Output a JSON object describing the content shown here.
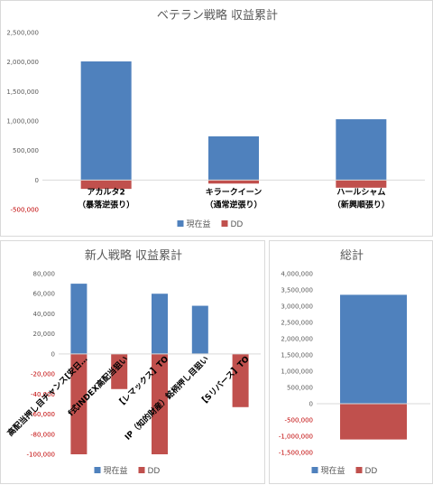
{
  "colors": {
    "現在益": "#4f81bd",
    "DD": "#c0504d",
    "negative_tick": "#c00000"
  },
  "chart_data": [
    {
      "type": "bar",
      "stacked": true,
      "title": "ベテラン戦略 収益累計",
      "categories": [
        "アカルタ2\n（暴落逆張り）",
        "キラークイーン\n（通常逆張り）",
        "ハールシャム\n（新興順張り）"
      ],
      "series": [
        {
          "name": "現在益",
          "values": [
            2010000,
            740000,
            1030000
          ]
        },
        {
          "name": "DD",
          "values": [
            -150000,
            -60000,
            -130000
          ]
        }
      ],
      "ylim": [
        -500000,
        2500000
      ],
      "yticks": [
        -500000,
        0,
        500000,
        1000000,
        1500000,
        2000000,
        2500000
      ],
      "ytick_labels": [
        "-500,000",
        "0",
        "500,000",
        "1,000,000",
        "1,500,000",
        "2,000,000",
        "2,500,000"
      ],
      "legend": "bottom",
      "grid": false
    },
    {
      "type": "bar",
      "stacked": true,
      "title": "新人戦略 収益累計",
      "categories": [
        "高配当押し目チャンス[安日…",
        "f式INDEX高配当狙い",
        "【レマックス】TO",
        "IP（知的財産）銘柄押し目狙い",
        "【Sリバース】TO"
      ],
      "series": [
        {
          "name": "現在益",
          "values": [
            70000,
            0,
            60000,
            48000,
            0
          ]
        },
        {
          "name": "DD",
          "values": [
            -100000,
            -35000,
            -100000,
            0,
            -53000
          ]
        }
      ],
      "ylim": [
        -100000,
        80000
      ],
      "yticks": [
        -100000,
        -80000,
        -60000,
        -40000,
        -20000,
        0,
        20000,
        40000,
        60000,
        80000
      ],
      "ytick_labels": [
        "-100,000",
        "-80,000",
        "-60,000",
        "-40,000",
        "-20,000",
        "0",
        "20,000",
        "40,000",
        "60,000",
        "80,000"
      ],
      "legend": "bottom",
      "grid": false
    },
    {
      "type": "bar",
      "stacked": true,
      "title": "総計",
      "categories": [
        ""
      ],
      "series": [
        {
          "name": "現在益",
          "values": [
            3350000
          ]
        },
        {
          "name": "DD",
          "values": [
            -1100000
          ]
        }
      ],
      "ylim": [
        -1500000,
        4000000
      ],
      "yticks": [
        -1500000,
        -1000000,
        -500000,
        0,
        500000,
        1000000,
        1500000,
        2000000,
        2500000,
        3000000,
        3500000,
        4000000
      ],
      "ytick_labels": [
        "-1,500,000",
        "-1,000,000",
        "-500,000",
        "0",
        "500,000",
        "1,000,000",
        "1,500,000",
        "2,000,000",
        "2,500,000",
        "3,000,000",
        "3,500,000",
        "4,000,000"
      ],
      "legend": "bottom",
      "grid": false
    }
  ]
}
